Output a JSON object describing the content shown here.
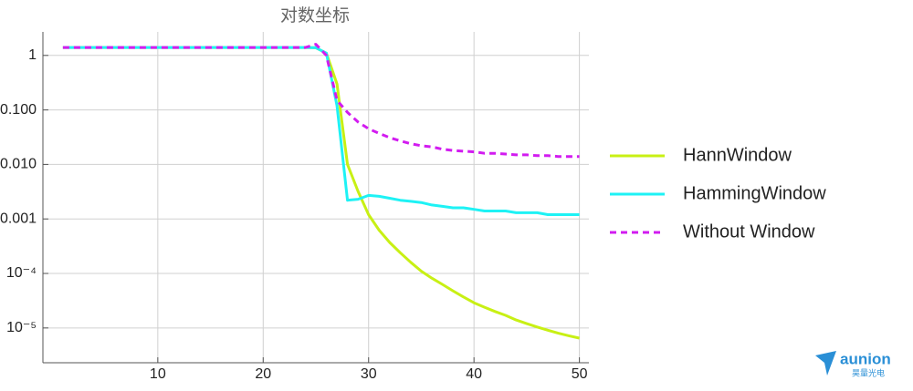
{
  "chart_data": {
    "type": "line",
    "title": "对数坐标",
    "x": [
      1,
      2,
      3,
      4,
      5,
      6,
      7,
      8,
      9,
      10,
      11,
      12,
      13,
      14,
      15,
      16,
      17,
      18,
      19,
      20,
      21,
      22,
      23,
      24,
      25,
      26,
      27,
      28,
      29,
      30,
      31,
      32,
      33,
      34,
      35,
      36,
      37,
      38,
      39,
      40,
      41,
      42,
      43,
      44,
      45,
      46,
      47,
      48,
      49,
      50
    ],
    "series": [
      {
        "name": "HannWindow",
        "color": "#c8f014",
        "dashed": false,
        "values": [
          1.4,
          1.4,
          1.4,
          1.4,
          1.4,
          1.4,
          1.4,
          1.4,
          1.4,
          1.4,
          1.4,
          1.4,
          1.4,
          1.4,
          1.4,
          1.4,
          1.4,
          1.4,
          1.4,
          1.4,
          1.4,
          1.4,
          1.4,
          1.4,
          1.38,
          1.1,
          0.3,
          0.01,
          0.0032,
          0.0012,
          0.00062,
          0.00037,
          0.00024,
          0.00016,
          0.00011,
          8.2e-05,
          6.3e-05,
          4.8e-05,
          3.7e-05,
          2.9e-05,
          2.4e-05,
          2e-05,
          1.7e-05,
          1.4e-05,
          1.2e-05,
          1.04e-05,
          9.1e-06,
          8e-06,
          7.2e-06,
          6.5e-06
        ]
      },
      {
        "name": "HammingWindow",
        "color": "#1ef2f5",
        "dashed": false,
        "values": [
          1.4,
          1.4,
          1.4,
          1.4,
          1.4,
          1.4,
          1.4,
          1.4,
          1.4,
          1.4,
          1.4,
          1.4,
          1.4,
          1.4,
          1.4,
          1.4,
          1.4,
          1.4,
          1.4,
          1.4,
          1.4,
          1.4,
          1.4,
          1.4,
          1.38,
          1.1,
          0.12,
          0.0022,
          0.0023,
          0.0027,
          0.0026,
          0.0024,
          0.0022,
          0.0021,
          0.002,
          0.0018,
          0.0017,
          0.0016,
          0.0016,
          0.0015,
          0.0014,
          0.0014,
          0.0014,
          0.0013,
          0.0013,
          0.0013,
          0.0012,
          0.0012,
          0.0012,
          0.0012
        ]
      },
      {
        "name": "Without Window",
        "color": "#d21cf0",
        "dashed": true,
        "values": [
          1.4,
          1.4,
          1.4,
          1.4,
          1.4,
          1.4,
          1.4,
          1.4,
          1.4,
          1.4,
          1.4,
          1.4,
          1.4,
          1.4,
          1.4,
          1.4,
          1.4,
          1.4,
          1.4,
          1.4,
          1.4,
          1.4,
          1.4,
          1.4,
          1.6,
          1.0,
          0.15,
          0.09,
          0.06,
          0.045,
          0.037,
          0.031,
          0.027,
          0.024,
          0.022,
          0.021,
          0.019,
          0.018,
          0.0175,
          0.017,
          0.016,
          0.016,
          0.0155,
          0.015,
          0.015,
          0.0145,
          0.0145,
          0.014,
          0.014,
          0.014
        ]
      }
    ],
    "xlim": [
      -0.9,
      50.9
    ],
    "xticks": [
      10,
      20,
      30,
      40,
      50
    ],
    "ylim": [
      2.3e-06,
      2.7
    ],
    "log_y": true,
    "yticks": [
      1,
      {
        "value": 0.1,
        "label": "0.100"
      },
      {
        "value": 0.01,
        "label": "0.010"
      },
      0.001,
      {
        "value": 0.0001,
        "label": "10⁻⁴"
      },
      {
        "value": 1e-05,
        "label": "10⁻⁵"
      }
    ],
    "grid": true,
    "legend": "right"
  },
  "watermark": {
    "brand": "aunion",
    "subtitle": "昊量光电"
  }
}
